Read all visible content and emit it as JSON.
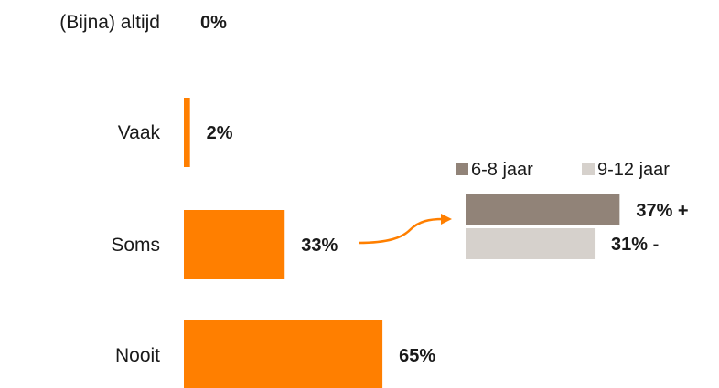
{
  "chart_data": [
    {
      "type": "bar",
      "orientation": "horizontal",
      "categories": [
        "(Bijna) altijd",
        "Vaak",
        "Soms",
        "Nooit"
      ],
      "values": [
        0,
        2,
        33,
        65
      ],
      "value_labels": [
        "0%",
        "2%",
        "33%",
        "65%"
      ],
      "xlim": [
        0,
        100
      ],
      "color": "#ff7f00",
      "grid": false,
      "legend": null
    },
    {
      "type": "bar",
      "orientation": "horizontal",
      "categories": [
        "Soms"
      ],
      "series": [
        {
          "name": "6-8 jaar",
          "values": [
            37
          ],
          "label": "37% +",
          "color": "#918378"
        },
        {
          "name": "9-12 jaar",
          "values": [
            31
          ],
          "label": "31% -",
          "color": "#d6d1cc"
        }
      ],
      "xlim": [
        0,
        100
      ],
      "legend": "top",
      "grid": false
    }
  ],
  "annotation": {
    "type": "arrow",
    "from_category": "Soms",
    "color": "#ff7f00"
  }
}
